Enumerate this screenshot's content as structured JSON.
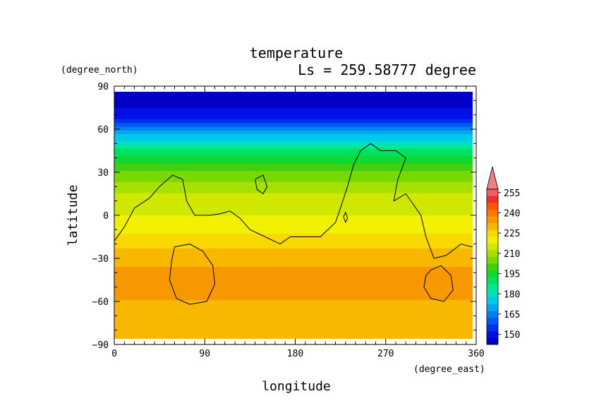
{
  "chart_data": {
    "type": "heatmap",
    "title": "temperature",
    "subtitle": "Ls = 259.58777 degree",
    "xlabel": "longitude",
    "ylabel": "latitude",
    "x_unit": "(degree_east)",
    "y_unit": "(degree_north)",
    "xlim": [
      0,
      360
    ],
    "ylim": [
      -90,
      90
    ],
    "x_ticks": [
      0,
      90,
      180,
      270,
      360
    ],
    "y_ticks": [
      90,
      60,
      30,
      0,
      -30,
      -60,
      -90
    ],
    "x_tick_labels": [
      "0",
      "90",
      "180",
      "270",
      "360"
    ],
    "y_tick_labels": [
      "90",
      "60",
      "30",
      "0",
      "−30",
      "−60",
      "−90"
    ],
    "colorbar": {
      "tick_labels": [
        "150",
        "165",
        "180",
        "195",
        "210",
        "225",
        "240",
        "255"
      ],
      "levels": [
        145,
        150,
        155,
        160,
        165,
        170,
        175,
        180,
        185,
        190,
        195,
        200,
        205,
        210,
        215,
        220,
        225,
        230,
        235,
        240,
        245,
        250,
        255,
        260
      ],
      "colors": [
        "#0000c8",
        "#0010e6",
        "#0030f0",
        "#0058f0",
        "#0080f0",
        "#00a8f0",
        "#00c8e8",
        "#00e0c0",
        "#00e890",
        "#00e060",
        "#10d830",
        "#40d010",
        "#78d800",
        "#a8e000",
        "#d0e800",
        "#f0f000",
        "#f8d800",
        "#f8b800",
        "#f89800",
        "#f87800",
        "#f85800",
        "#f03030",
        "#f06060",
        "#f08080"
      ],
      "extend": "max"
    },
    "latitude_profile": [
      {
        "lat": 85,
        "t": 146
      },
      {
        "lat": 70,
        "t": 152
      },
      {
        "lat": 60,
        "t": 168
      },
      {
        "lat": 50,
        "t": 184
      },
      {
        "lat": 40,
        "t": 197
      },
      {
        "lat": 30,
        "t": 206
      },
      {
        "lat": 20,
        "t": 213
      },
      {
        "lat": 10,
        "t": 217
      },
      {
        "lat": 0,
        "t": 220
      },
      {
        "lat": -10,
        "t": 224
      },
      {
        "lat": -20,
        "t": 229
      },
      {
        "lat": -30,
        "t": 234
      },
      {
        "lat": -40,
        "t": 236
      },
      {
        "lat": -50,
        "t": 237
      },
      {
        "lat": -60,
        "t": 235
      },
      {
        "lat": -70,
        "t": 232
      },
      {
        "lat": -85,
        "t": 230
      }
    ],
    "topography_contour": [
      [
        [
          0,
          -18
        ],
        [
          10,
          -8
        ],
        [
          20,
          5
        ],
        [
          35,
          12
        ],
        [
          45,
          20
        ],
        [
          58,
          28
        ],
        [
          68,
          25
        ],
        [
          72,
          10
        ],
        [
          80,
          0
        ],
        [
          95,
          0
        ],
        [
          105,
          1
        ],
        [
          115,
          3
        ],
        [
          125,
          -2
        ],
        [
          135,
          -10
        ],
        [
          150,
          -15
        ],
        [
          165,
          -20
        ],
        [
          175,
          -15
        ],
        [
          190,
          -15
        ],
        [
          205,
          -15
        ],
        [
          220,
          -5
        ],
        [
          225,
          5
        ],
        [
          232,
          20
        ],
        [
          238,
          35
        ],
        [
          245,
          45
        ],
        [
          255,
          50
        ],
        [
          265,
          45
        ],
        [
          280,
          45
        ],
        [
          290,
          40
        ],
        [
          282,
          25
        ],
        [
          278,
          10
        ],
        [
          290,
          15
        ],
        [
          305,
          0
        ],
        [
          310,
          -15
        ],
        [
          318,
          -30
        ],
        [
          330,
          -28
        ],
        [
          345,
          -20
        ],
        [
          355,
          -22
        ],
        [
          360,
          -20
        ]
      ],
      [
        [
          140,
          25
        ],
        [
          148,
          28
        ],
        [
          152,
          20
        ],
        [
          148,
          15
        ],
        [
          142,
          18
        ],
        [
          140,
          25
        ]
      ],
      [
        [
          60,
          -22
        ],
        [
          75,
          -20
        ],
        [
          88,
          -25
        ],
        [
          98,
          -35
        ],
        [
          100,
          -48
        ],
        [
          92,
          -60
        ],
        [
          75,
          -62
        ],
        [
          62,
          -58
        ],
        [
          55,
          -45
        ],
        [
          57,
          -32
        ],
        [
          60,
          -22
        ]
      ],
      [
        [
          315,
          -38
        ],
        [
          325,
          -35
        ],
        [
          335,
          -42
        ],
        [
          337,
          -52
        ],
        [
          328,
          -60
        ],
        [
          315,
          -58
        ],
        [
          308,
          -50
        ],
        [
          310,
          -42
        ],
        [
          315,
          -38
        ]
      ],
      [
        [
          230,
          -5
        ],
        [
          232,
          -2
        ],
        [
          230,
          2
        ],
        [
          228,
          -1
        ],
        [
          230,
          -5
        ]
      ]
    ]
  }
}
